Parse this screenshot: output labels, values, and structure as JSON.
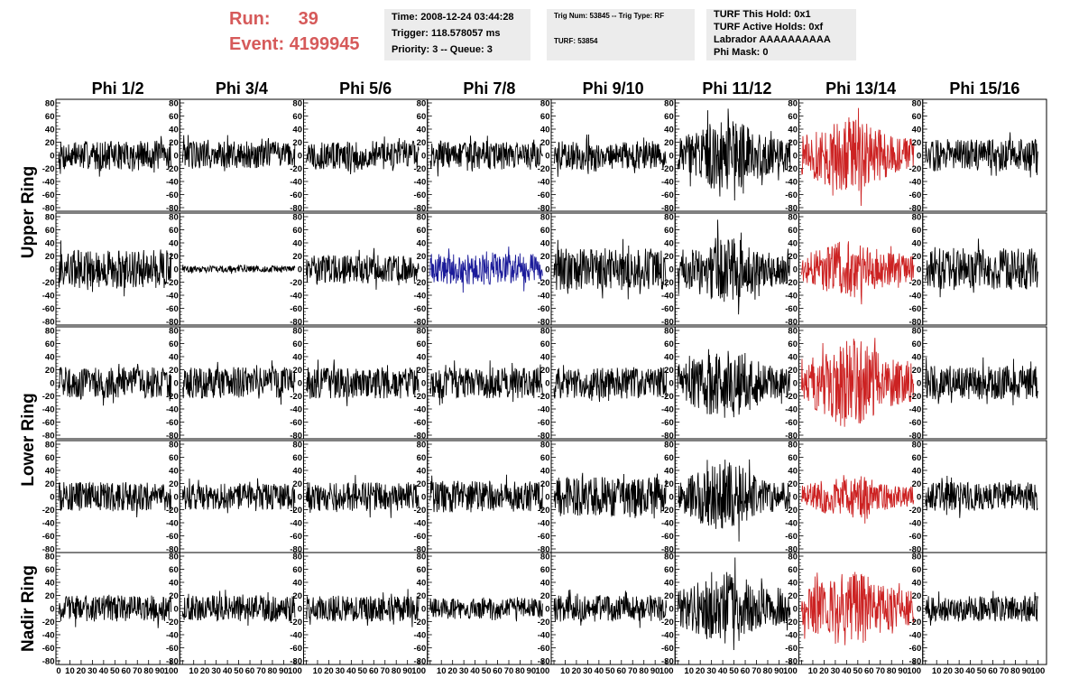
{
  "header": {
    "run_label": "Run:",
    "run_value": "39",
    "event_label": "Event:",
    "event_value": "4199945",
    "time_info": [
      "Time: 2008-12-24 03:44:28",
      "Trigger: 118.578057 ms",
      "Priority: 3 -- Queue: 3"
    ],
    "trig_info": [
      "Trig Num: 53845 -- Trig Type: RF",
      "TURF: 53854"
    ],
    "turf_info": [
      "TURF This Hold: 0x1",
      "TURF Active Holds: 0xf",
      "Labrador AAAAAAAAAA",
      "Phi Mask: 0"
    ]
  },
  "colors": {
    "header_red": "#d65a5a",
    "info_bg": "#ececec",
    "normal_trace": "#000000",
    "triggered_trace": "#cc2222",
    "highlight_trace": "#1a1a99"
  },
  "chart_data": {
    "type": "line",
    "columns": [
      "Phi 1/2",
      "Phi 3/4",
      "Phi 5/6",
      "Phi 7/8",
      "Phi 9/10",
      "Phi 11/12",
      "Phi 13/14",
      "Phi 15/16"
    ],
    "row_groups": [
      "Upper Ring",
      "Lower Ring",
      "Nadir Ring"
    ],
    "ylim": [
      -80,
      80
    ],
    "xlim": [
      0,
      100
    ],
    "y_ticks": [
      -80,
      -60,
      -40,
      -20,
      0,
      20,
      40,
      60,
      80
    ],
    "x_ticks": [
      0,
      10,
      20,
      30,
      40,
      50,
      60,
      70,
      80,
      90,
      100
    ],
    "panel_count_per_column": 5,
    "trace_points": 260,
    "panels": [
      {
        "row": 0,
        "col": 0,
        "amp": 22,
        "color": "normal"
      },
      {
        "row": 0,
        "col": 1,
        "amp": 22,
        "color": "normal"
      },
      {
        "row": 0,
        "col": 2,
        "amp": 22,
        "color": "normal"
      },
      {
        "row": 0,
        "col": 3,
        "amp": 22,
        "color": "normal"
      },
      {
        "row": 0,
        "col": 4,
        "amp": 22,
        "color": "normal"
      },
      {
        "row": 0,
        "col": 5,
        "amp": 45,
        "color": "normal"
      },
      {
        "row": 0,
        "col": 6,
        "amp": 48,
        "color": "triggered"
      },
      {
        "row": 0,
        "col": 7,
        "amp": 24,
        "color": "normal"
      },
      {
        "row": 1,
        "col": 0,
        "amp": 30,
        "color": "normal"
      },
      {
        "row": 1,
        "col": 1,
        "amp": 5,
        "color": "normal"
      },
      {
        "row": 1,
        "col": 2,
        "amp": 22,
        "color": "normal"
      },
      {
        "row": 1,
        "col": 3,
        "amp": 24,
        "color": "highlight"
      },
      {
        "row": 1,
        "col": 4,
        "amp": 32,
        "color": "normal"
      },
      {
        "row": 1,
        "col": 5,
        "amp": 42,
        "color": "normal"
      },
      {
        "row": 1,
        "col": 6,
        "amp": 36,
        "color": "triggered"
      },
      {
        "row": 1,
        "col": 7,
        "amp": 32,
        "color": "normal"
      },
      {
        "row": 2,
        "col": 0,
        "amp": 24,
        "color": "normal"
      },
      {
        "row": 2,
        "col": 1,
        "amp": 24,
        "color": "normal"
      },
      {
        "row": 2,
        "col": 2,
        "amp": 24,
        "color": "normal"
      },
      {
        "row": 2,
        "col": 3,
        "amp": 24,
        "color": "normal"
      },
      {
        "row": 2,
        "col": 4,
        "amp": 24,
        "color": "normal"
      },
      {
        "row": 2,
        "col": 5,
        "amp": 45,
        "color": "normal"
      },
      {
        "row": 2,
        "col": 6,
        "amp": 55,
        "color": "triggered"
      },
      {
        "row": 2,
        "col": 7,
        "amp": 26,
        "color": "normal"
      },
      {
        "row": 3,
        "col": 0,
        "amp": 22,
        "color": "normal"
      },
      {
        "row": 3,
        "col": 1,
        "amp": 20,
        "color": "normal"
      },
      {
        "row": 3,
        "col": 2,
        "amp": 22,
        "color": "normal"
      },
      {
        "row": 3,
        "col": 3,
        "amp": 24,
        "color": "normal"
      },
      {
        "row": 3,
        "col": 4,
        "amp": 30,
        "color": "normal"
      },
      {
        "row": 3,
        "col": 5,
        "amp": 42,
        "color": "normal"
      },
      {
        "row": 3,
        "col": 6,
        "amp": 28,
        "color": "triggered"
      },
      {
        "row": 3,
        "col": 7,
        "amp": 22,
        "color": "normal"
      },
      {
        "row": 4,
        "col": 0,
        "amp": 20,
        "color": "normal"
      },
      {
        "row": 4,
        "col": 1,
        "amp": 20,
        "color": "normal"
      },
      {
        "row": 4,
        "col": 2,
        "amp": 20,
        "color": "normal"
      },
      {
        "row": 4,
        "col": 3,
        "amp": 16,
        "color": "normal"
      },
      {
        "row": 4,
        "col": 4,
        "amp": 20,
        "color": "normal"
      },
      {
        "row": 4,
        "col": 5,
        "amp": 45,
        "color": "normal"
      },
      {
        "row": 4,
        "col": 6,
        "amp": 48,
        "color": "triggered"
      },
      {
        "row": 4,
        "col": 7,
        "amp": 20,
        "color": "normal"
      }
    ]
  }
}
